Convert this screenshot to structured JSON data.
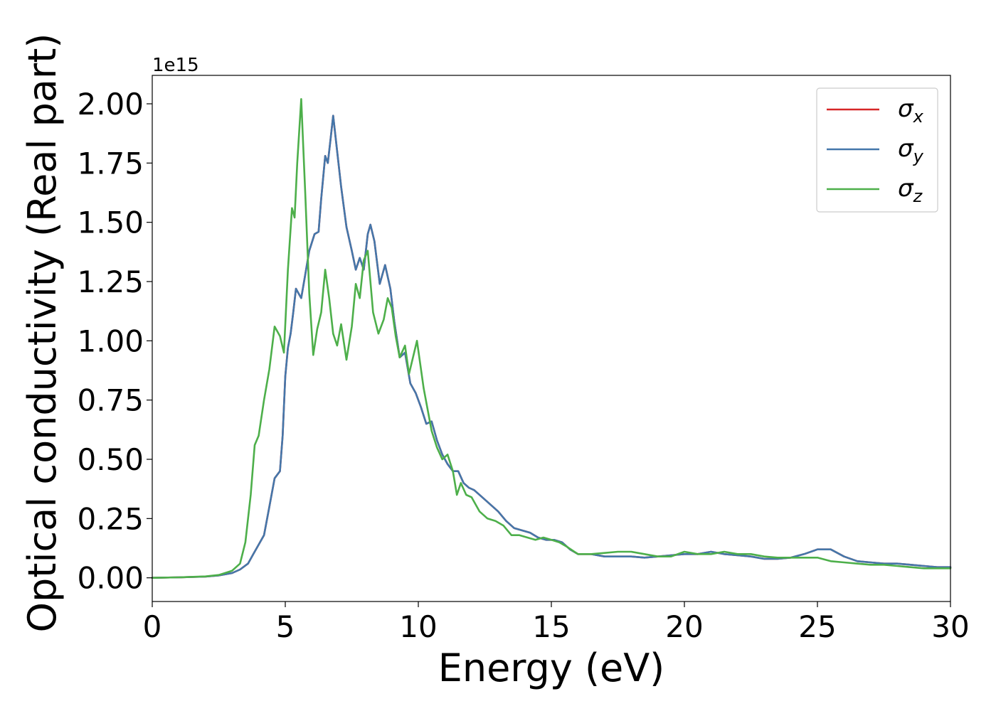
{
  "chart_data": {
    "type": "line",
    "title": "",
    "xlabel": "Energy (eV)",
    "ylabel": "Optical conductivity (Real part)",
    "y_offset_label": "1e15",
    "y_scale": 1000000000000000.0,
    "xlim": [
      0,
      30
    ],
    "ylim": [
      -0.1,
      2.12
    ],
    "xticks": [
      0,
      5,
      10,
      15,
      20,
      25,
      30
    ],
    "xtick_labels": [
      "0",
      "5",
      "10",
      "15",
      "20",
      "25",
      "30"
    ],
    "yticks": [
      0,
      0.25,
      0.5,
      0.75,
      1.0,
      1.25,
      1.5,
      1.75,
      2.0
    ],
    "ytick_labels": [
      "0.00",
      "0.25",
      "0.50",
      "0.75",
      "1.00",
      "1.25",
      "1.50",
      "1.75",
      "2.00"
    ],
    "grid": false,
    "legend_position": "top-right",
    "series": [
      {
        "name": "σ",
        "subscript": "x",
        "color": "#d62728",
        "x": [
          0,
          1,
          2,
          2.5,
          3,
          3.3,
          3.6,
          3.8,
          4.0,
          4.2,
          4.4,
          4.6,
          4.8,
          4.9,
          5.0,
          5.1,
          5.2,
          5.3,
          5.4,
          5.5,
          5.6,
          5.75,
          5.9,
          6.1,
          6.25,
          6.35,
          6.5,
          6.6,
          6.7,
          6.8,
          6.95,
          7.1,
          7.3,
          7.5,
          7.65,
          7.8,
          7.95,
          8.1,
          8.2,
          8.35,
          8.55,
          8.75,
          8.95,
          9.1,
          9.3,
          9.5,
          9.7,
          9.9,
          10.1,
          10.3,
          10.5,
          10.7,
          10.9,
          11.1,
          11.3,
          11.5,
          11.7,
          11.9,
          12.1,
          12.4,
          12.7,
          13.0,
          13.3,
          13.6,
          13.9,
          14.2,
          14.5,
          14.8,
          15.1,
          15.4,
          15.7,
          16.0,
          16.5,
          17.0,
          17.5,
          18.0,
          18.5,
          19.0,
          19.5,
          20.0,
          20.5,
          21.0,
          21.5,
          22.0,
          22.5,
          23.0,
          23.5,
          24.0,
          24.5,
          25.0,
          25.5,
          26.0,
          26.5,
          27.0,
          27.5,
          28.0,
          28.5,
          29.0,
          29.5,
          30.0
        ],
        "y": [
          0,
          0.002,
          0.005,
          0.01,
          0.02,
          0.035,
          0.06,
          0.1,
          0.14,
          0.18,
          0.3,
          0.42,
          0.45,
          0.6,
          0.85,
          0.97,
          1.03,
          1.12,
          1.22,
          1.2,
          1.18,
          1.28,
          1.38,
          1.45,
          1.46,
          1.6,
          1.78,
          1.75,
          1.85,
          1.95,
          1.8,
          1.65,
          1.48,
          1.38,
          1.3,
          1.35,
          1.3,
          1.45,
          1.49,
          1.42,
          1.24,
          1.32,
          1.22,
          1.08,
          0.93,
          0.95,
          0.82,
          0.78,
          0.72,
          0.65,
          0.66,
          0.58,
          0.52,
          0.48,
          0.45,
          0.45,
          0.4,
          0.38,
          0.37,
          0.34,
          0.31,
          0.28,
          0.24,
          0.21,
          0.2,
          0.19,
          0.17,
          0.16,
          0.16,
          0.15,
          0.12,
          0.1,
          0.1,
          0.09,
          0.09,
          0.09,
          0.085,
          0.09,
          0.095,
          0.1,
          0.1,
          0.11,
          0.1,
          0.095,
          0.09,
          0.08,
          0.08,
          0.085,
          0.1,
          0.12,
          0.12,
          0.09,
          0.07,
          0.065,
          0.06,
          0.06,
          0.055,
          0.05,
          0.045,
          0.045
        ]
      },
      {
        "name": "σ",
        "subscript": "y",
        "color": "#4477aa",
        "x": [
          0,
          1,
          2,
          2.5,
          3,
          3.3,
          3.6,
          3.8,
          4.0,
          4.2,
          4.4,
          4.6,
          4.8,
          4.9,
          5.0,
          5.1,
          5.2,
          5.3,
          5.4,
          5.5,
          5.6,
          5.75,
          5.9,
          6.1,
          6.25,
          6.35,
          6.5,
          6.6,
          6.7,
          6.8,
          6.95,
          7.1,
          7.3,
          7.5,
          7.65,
          7.8,
          7.95,
          8.1,
          8.2,
          8.35,
          8.55,
          8.75,
          8.95,
          9.1,
          9.3,
          9.5,
          9.7,
          9.9,
          10.1,
          10.3,
          10.5,
          10.7,
          10.9,
          11.1,
          11.3,
          11.5,
          11.7,
          11.9,
          12.1,
          12.4,
          12.7,
          13.0,
          13.3,
          13.6,
          13.9,
          14.2,
          14.5,
          14.8,
          15.1,
          15.4,
          15.7,
          16.0,
          16.5,
          17.0,
          17.5,
          18.0,
          18.5,
          19.0,
          19.5,
          20.0,
          20.5,
          21.0,
          21.5,
          22.0,
          22.5,
          23.0,
          23.5,
          24.0,
          24.5,
          25.0,
          25.5,
          26.0,
          26.5,
          27.0,
          27.5,
          28.0,
          28.5,
          29.0,
          29.5,
          30.0
        ],
        "y": [
          0,
          0.002,
          0.005,
          0.01,
          0.02,
          0.035,
          0.06,
          0.1,
          0.14,
          0.18,
          0.3,
          0.42,
          0.45,
          0.6,
          0.85,
          0.97,
          1.03,
          1.12,
          1.22,
          1.2,
          1.18,
          1.28,
          1.38,
          1.45,
          1.46,
          1.6,
          1.78,
          1.75,
          1.85,
          1.95,
          1.8,
          1.65,
          1.48,
          1.38,
          1.3,
          1.35,
          1.3,
          1.45,
          1.49,
          1.42,
          1.24,
          1.32,
          1.22,
          1.08,
          0.93,
          0.95,
          0.82,
          0.78,
          0.72,
          0.65,
          0.66,
          0.58,
          0.52,
          0.48,
          0.45,
          0.45,
          0.4,
          0.38,
          0.37,
          0.34,
          0.31,
          0.28,
          0.24,
          0.21,
          0.2,
          0.19,
          0.17,
          0.16,
          0.16,
          0.15,
          0.12,
          0.1,
          0.1,
          0.09,
          0.09,
          0.09,
          0.085,
          0.09,
          0.095,
          0.1,
          0.1,
          0.11,
          0.1,
          0.095,
          0.09,
          0.08,
          0.08,
          0.085,
          0.1,
          0.12,
          0.12,
          0.09,
          0.07,
          0.065,
          0.06,
          0.06,
          0.055,
          0.05,
          0.045,
          0.045
        ]
      },
      {
        "name": "σ",
        "subscript": "z",
        "color": "#4daf4a",
        "x": [
          0,
          1,
          2,
          2.5,
          3,
          3.3,
          3.5,
          3.7,
          3.85,
          4.0,
          4.2,
          4.4,
          4.6,
          4.8,
          4.95,
          5.1,
          5.25,
          5.35,
          5.45,
          5.6,
          5.75,
          5.9,
          6.05,
          6.2,
          6.35,
          6.5,
          6.65,
          6.8,
          6.95,
          7.1,
          7.3,
          7.5,
          7.65,
          7.8,
          7.95,
          8.1,
          8.3,
          8.5,
          8.7,
          8.85,
          9.0,
          9.15,
          9.3,
          9.5,
          9.65,
          9.8,
          9.95,
          10.2,
          10.5,
          10.7,
          10.9,
          11.1,
          11.3,
          11.45,
          11.6,
          11.8,
          12.0,
          12.3,
          12.6,
          12.9,
          13.2,
          13.5,
          13.8,
          14.1,
          14.4,
          14.7,
          15.0,
          15.3,
          15.6,
          16.0,
          16.5,
          17.0,
          17.5,
          18.0,
          18.5,
          19.0,
          19.5,
          20.0,
          20.5,
          21.0,
          21.5,
          22.0,
          22.5,
          23.0,
          23.5,
          24.0,
          24.5,
          25.0,
          25.5,
          26.0,
          26.5,
          27.0,
          27.5,
          28.0,
          28.5,
          29.0,
          29.5,
          30.0
        ],
        "y": [
          0,
          0.002,
          0.006,
          0.012,
          0.03,
          0.06,
          0.15,
          0.35,
          0.56,
          0.6,
          0.75,
          0.88,
          1.06,
          1.02,
          0.95,
          1.3,
          1.56,
          1.52,
          1.75,
          2.02,
          1.62,
          1.2,
          0.94,
          1.05,
          1.12,
          1.3,
          1.18,
          1.03,
          0.98,
          1.07,
          0.92,
          1.06,
          1.24,
          1.18,
          1.34,
          1.38,
          1.12,
          1.03,
          1.09,
          1.18,
          1.14,
          1.02,
          0.93,
          0.98,
          0.86,
          0.93,
          1.0,
          0.8,
          0.62,
          0.55,
          0.5,
          0.52,
          0.45,
          0.35,
          0.4,
          0.35,
          0.34,
          0.28,
          0.25,
          0.24,
          0.22,
          0.18,
          0.18,
          0.17,
          0.16,
          0.17,
          0.16,
          0.15,
          0.13,
          0.1,
          0.1,
          0.105,
          0.11,
          0.11,
          0.1,
          0.09,
          0.09,
          0.11,
          0.1,
          0.1,
          0.11,
          0.1,
          0.1,
          0.09,
          0.085,
          0.085,
          0.085,
          0.085,
          0.07,
          0.065,
          0.06,
          0.055,
          0.055,
          0.05,
          0.045,
          0.04,
          0.04,
          0.04
        ]
      }
    ]
  }
}
